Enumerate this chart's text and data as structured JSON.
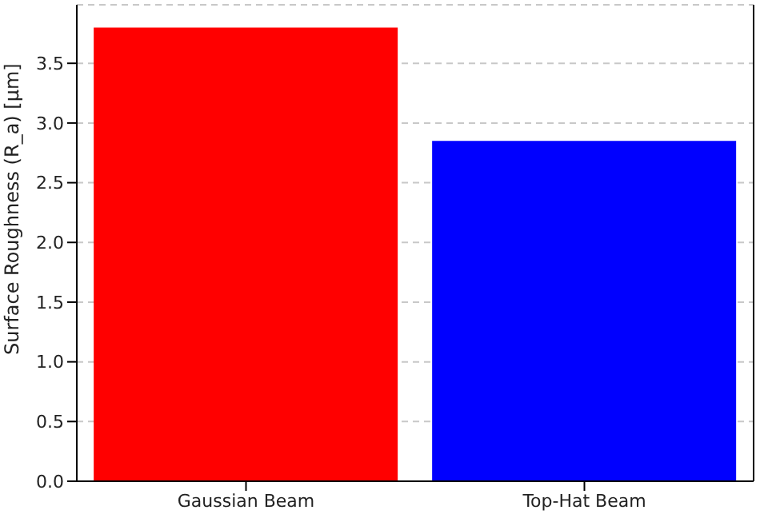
{
  "chart_data": {
    "type": "bar",
    "ylabel": "Surface Roughness (R_a) [μm]",
    "categories": [
      "Gaussian Beam",
      "Top-Hat Beam"
    ],
    "values": [
      3.8,
      2.85
    ],
    "colors": [
      "#ff0000",
      "#0000ff"
    ],
    "ylim": [
      0,
      3.99
    ],
    "yticks": [
      {
        "value": 0,
        "label": "0.0"
      },
      0.5,
      {
        "value": 1,
        "label": "1.0"
      },
      1.5,
      {
        "value": 2,
        "label": "2.0"
      },
      2.5,
      {
        "value": 3,
        "label": "3.0"
      },
      3.5
    ],
    "grid": "y"
  }
}
